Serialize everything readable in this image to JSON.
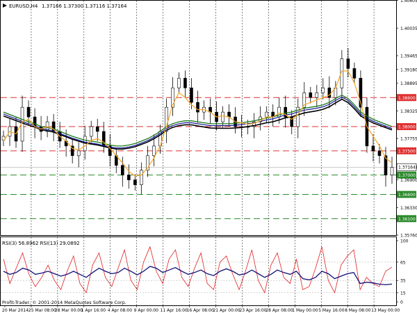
{
  "header": {
    "symbol_label": "EURUSD,H4",
    "ohlc": "1.37166 1.37300 1.37116 1.37164"
  },
  "colors": {
    "background": "#ffffff",
    "candle": "#000000",
    "fast_ma": "#f5a623",
    "mid_ma": "#1a7a1a",
    "slow_ma_blue": "#1a1a9a",
    "slow_ma_black": "#000000",
    "resistance": "#e03030",
    "support": "#2a8a2a",
    "rsi3": "#e02020",
    "rsi13": "#10107a",
    "grid": "#000000"
  },
  "chart_data": [
    {
      "type": "line",
      "name": "price",
      "ylim": [
        1.3576,
        1.406
      ],
      "y_tick_labels": [
        "1.40605",
        "1.40035",
        "1.39465",
        "1.39180",
        "1.38895",
        "1.38325",
        "1.37755",
        "1.37164",
        "1.36900",
        "1.36330",
        "1.35760"
      ],
      "levels": [
        {
          "value": 1.386,
          "label": "1.38600",
          "kind": "resistance"
        },
        {
          "value": 1.38,
          "label": "1.38000",
          "kind": "resistance"
        },
        {
          "value": 1.375,
          "label": "1.37500",
          "kind": "resistance"
        },
        {
          "value": 1.37,
          "label": "1.37000",
          "kind": "support"
        },
        {
          "value": 1.366,
          "label": "1.36600",
          "kind": "support"
        },
        {
          "value": 1.361,
          "label": "1.36100",
          "kind": "support"
        }
      ],
      "current_price": {
        "value": 1.37164,
        "label": "1.37164"
      },
      "x_labels": [
        "20 Mar 2014",
        "25 Mar 08:00",
        "28 Mar 00:00",
        "1 Apr 16:00",
        "4 Apr 08:00",
        "9 Apr 00:00",
        "11 Apr 16:00",
        "16 Apr 08:00",
        "21 Apr 00:00",
        "23 Apr 16:00",
        "28 Apr 08:00",
        "1 May 00:00",
        "5 May 16:00",
        "8 May 08:00",
        "13 May 00:00"
      ],
      "close": [
        1.378,
        1.38,
        1.377,
        1.384,
        1.382,
        1.38,
        1.379,
        1.381,
        1.379,
        1.377,
        1.376,
        1.374,
        1.375,
        1.378,
        1.38,
        1.379,
        1.376,
        1.374,
        1.372,
        1.37,
        1.369,
        1.368,
        1.371,
        1.374,
        1.376,
        1.379,
        1.384,
        1.388,
        1.39,
        1.388,
        1.385,
        1.383,
        1.384,
        1.383,
        1.381,
        1.383,
        1.382,
        1.38,
        1.38,
        1.38,
        1.381,
        1.382,
        1.383,
        1.382,
        1.384,
        1.382,
        1.38,
        1.384,
        1.387,
        1.386,
        1.387,
        1.388,
        1.386,
        1.388,
        1.394,
        1.392,
        1.39,
        1.384,
        1.376,
        1.375,
        1.374,
        1.37,
        1.3716
      ],
      "fast_ma": [
        1.377,
        1.379,
        1.3785,
        1.381,
        1.3815,
        1.38,
        1.3795,
        1.38,
        1.3795,
        1.378,
        1.377,
        1.3755,
        1.3752,
        1.376,
        1.3772,
        1.3775,
        1.3768,
        1.3755,
        1.374,
        1.3725,
        1.3708,
        1.3698,
        1.37,
        1.3715,
        1.3735,
        1.376,
        1.38,
        1.3845,
        1.387,
        1.386,
        1.3845,
        1.3835,
        1.3835,
        1.383,
        1.382,
        1.3822,
        1.382,
        1.381,
        1.3808,
        1.3805,
        1.3807,
        1.3812,
        1.382,
        1.382,
        1.3828,
        1.3825,
        1.3815,
        1.3825,
        1.3845,
        1.385,
        1.3855,
        1.386,
        1.3865,
        1.388,
        1.3915,
        1.3915,
        1.389,
        1.385,
        1.38,
        1.378,
        1.376,
        1.3735,
        1.3725
      ],
      "mid_ma": [
        1.383,
        1.3825,
        1.382,
        1.3815,
        1.381,
        1.3806,
        1.38,
        1.3798,
        1.3795,
        1.379,
        1.3785,
        1.378,
        1.3776,
        1.3772,
        1.377,
        1.3768,
        1.3765,
        1.3762,
        1.376,
        1.376,
        1.3762,
        1.3765,
        1.377,
        1.3775,
        1.3782,
        1.379,
        1.38,
        1.3806,
        1.381,
        1.3812,
        1.3812,
        1.381,
        1.3808,
        1.3806,
        1.3806,
        1.3806,
        1.3806,
        1.3807,
        1.3808,
        1.381,
        1.3812,
        1.3815,
        1.3818,
        1.382,
        1.3824,
        1.3828,
        1.383,
        1.3834,
        1.3838,
        1.384,
        1.3842,
        1.3845,
        1.385,
        1.3858,
        1.3865,
        1.3858,
        1.3845,
        1.383,
        1.3822,
        1.3815,
        1.381,
        1.3805,
        1.38
      ]
    },
    {
      "type": "line",
      "name": "RSI",
      "label": "RSI(3) 56.8962  RSI(13) 29.0892",
      "ylim": [
        0,
        100
      ],
      "y_tick_labels": [
        "100",
        "65",
        "35",
        "15",
        "0"
      ],
      "series": [
        {
          "name": "RSI(3)",
          "values": [
            70,
            30,
            55,
            80,
            45,
            25,
            40,
            60,
            35,
            20,
            50,
            75,
            30,
            15,
            60,
            80,
            40,
            25,
            55,
            85,
            35,
            20,
            65,
            90,
            50,
            30,
            70,
            85,
            40,
            25,
            55,
            80,
            30,
            20,
            65,
            75,
            45,
            20,
            50,
            85,
            35,
            15,
            60,
            80,
            40,
            30,
            70,
            20,
            25,
            55,
            90,
            35,
            15,
            60,
            75,
            85,
            20,
            40,
            30,
            25,
            50,
            56.9
          ]
        },
        {
          "name": "RSI(13)",
          "values": [
            50,
            45,
            48,
            55,
            52,
            45,
            47,
            50,
            46,
            42,
            45,
            50,
            45,
            40,
            48,
            55,
            50,
            46,
            48,
            55,
            50,
            44,
            50,
            58,
            55,
            48,
            52,
            56,
            50,
            45,
            48,
            52,
            46,
            43,
            50,
            54,
            50,
            44,
            46,
            52,
            46,
            40,
            45,
            52,
            48,
            45,
            50,
            38,
            36,
            40,
            50,
            46,
            38,
            42,
            46,
            48,
            30,
            32,
            31,
            29,
            28,
            29.1
          ]
        }
      ],
      "copyright": "Profit-Trader, © 2001-2014 MetaQuotes Software Corp."
    }
  ]
}
